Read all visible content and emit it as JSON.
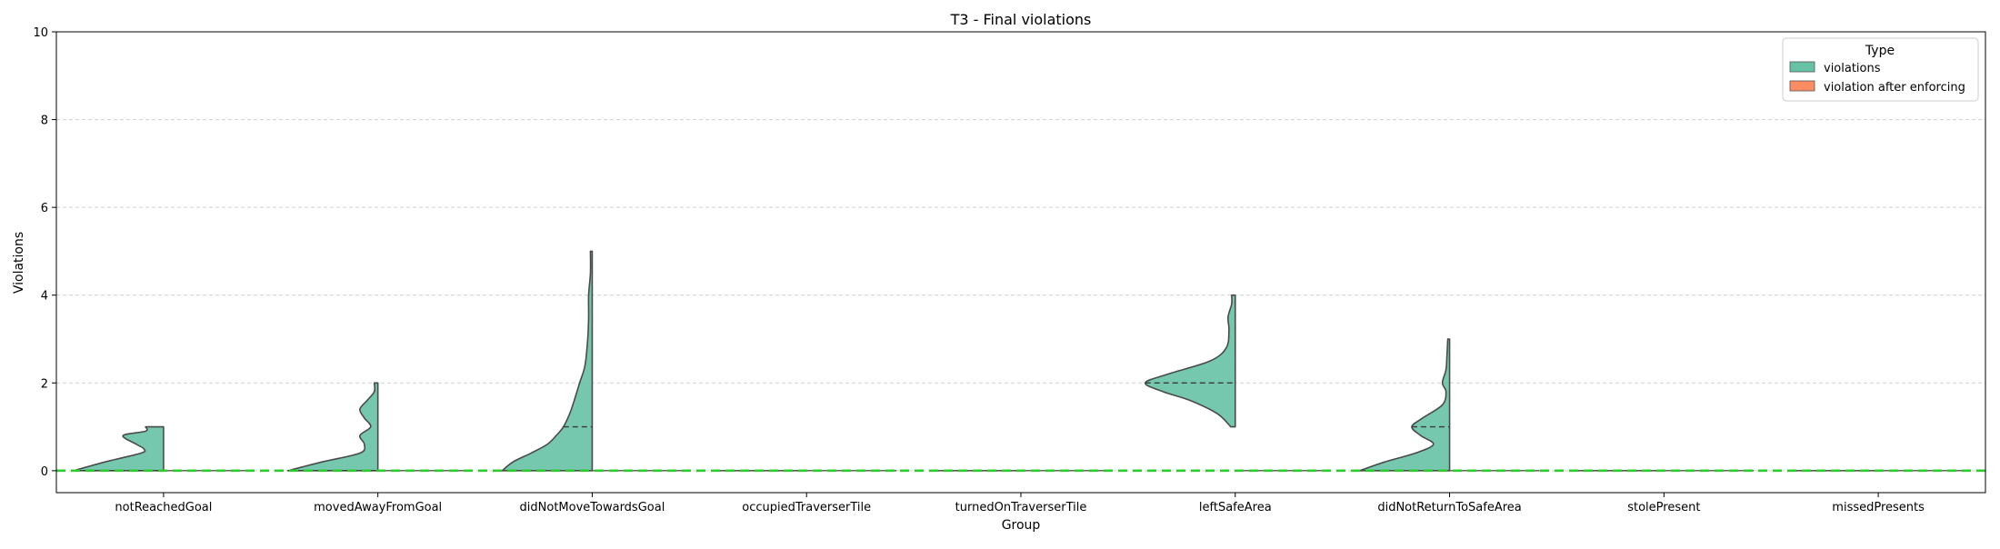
{
  "chart_data": {
    "type": "violin",
    "title": "T3 - Final violations",
    "xlabel": "Group",
    "ylabel": "Violations",
    "ylim": [
      -0.5,
      10
    ],
    "yticks": [
      0,
      2,
      4,
      6,
      8,
      10
    ],
    "grid": "y-dashed",
    "legend_position": "top-right",
    "legend": {
      "title": "Type",
      "entries": [
        {
          "label": "violations",
          "color": "#66c2a5"
        },
        {
          "label": "violation after enforcing",
          "color": "#fc8d62"
        }
      ]
    },
    "reference_line": {
      "y": 0,
      "color": "#2ecc2e",
      "style": "dashed"
    },
    "categories": [
      "notReachedGoal",
      "movedAwayFromGoal",
      "didNotMoveTowardsGoal",
      "occupiedTraverserTile",
      "turnedOnTraverserTile",
      "leftSafeArea",
      "didNotReturnToSafeArea",
      "stolePresent",
      "missedPresents"
    ],
    "series": [
      {
        "name": "violations",
        "color": "#66c2a5",
        "side": "left",
        "violins": [
          {
            "ymin": 0,
            "ymax": 1,
            "median": 0,
            "density": [
              [
                0,
                1.0
              ],
              [
                0.2,
                0.65
              ],
              [
                0.4,
                0.25
              ],
              [
                0.5,
                0.22
              ],
              [
                0.6,
                0.3
              ],
              [
                0.8,
                0.45
              ],
              [
                0.9,
                0.2
              ],
              [
                1.0,
                0.2
              ]
            ]
          },
          {
            "ymin": 0,
            "ymax": 2,
            "median": 0,
            "density": [
              [
                0,
                1.0
              ],
              [
                0.2,
                0.62
              ],
              [
                0.4,
                0.2
              ],
              [
                0.6,
                0.15
              ],
              [
                0.8,
                0.2
              ],
              [
                1.0,
                0.08
              ],
              [
                1.2,
                0.15
              ],
              [
                1.4,
                0.2
              ],
              [
                1.6,
                0.12
              ],
              [
                1.8,
                0.04
              ],
              [
                2.0,
                0.04
              ]
            ]
          },
          {
            "ymin": 0,
            "ymax": 5,
            "median": 1,
            "density": [
              [
                0,
                1.0
              ],
              [
                0.2,
                0.88
              ],
              [
                0.4,
                0.68
              ],
              [
                0.6,
                0.5
              ],
              [
                0.8,
                0.4
              ],
              [
                1.0,
                0.32
              ],
              [
                1.3,
                0.25
              ],
              [
                1.6,
                0.2
              ],
              [
                2.0,
                0.14
              ],
              [
                2.4,
                0.08
              ],
              [
                3.0,
                0.05
              ],
              [
                3.5,
                0.04
              ],
              [
                4.0,
                0.04
              ],
              [
                4.5,
                0.02
              ],
              [
                5.0,
                0.02
              ]
            ]
          },
          {
            "ymin": 0,
            "ymax": 0,
            "median": 0,
            "density": []
          },
          {
            "ymin": 0,
            "ymax": 0,
            "median": 0,
            "density": []
          },
          {
            "ymin": 1,
            "ymax": 4,
            "median": 2,
            "density": [
              [
                1.0,
                0.05
              ],
              [
                1.3,
                0.2
              ],
              [
                1.6,
                0.5
              ],
              [
                1.8,
                0.8
              ],
              [
                2.0,
                1.0
              ],
              [
                2.2,
                0.75
              ],
              [
                2.5,
                0.28
              ],
              [
                2.8,
                0.1
              ],
              [
                3.2,
                0.07
              ],
              [
                3.5,
                0.08
              ],
              [
                3.8,
                0.04
              ],
              [
                4.0,
                0.04
              ]
            ]
          },
          {
            "ymin": 0,
            "ymax": 3,
            "median": 1,
            "density": [
              [
                0,
                1.0
              ],
              [
                0.2,
                0.72
              ],
              [
                0.4,
                0.38
              ],
              [
                0.6,
                0.18
              ],
              [
                0.8,
                0.32
              ],
              [
                1.0,
                0.42
              ],
              [
                1.2,
                0.3
              ],
              [
                1.5,
                0.08
              ],
              [
                1.8,
                0.04
              ],
              [
                2.0,
                0.08
              ],
              [
                2.3,
                0.04
              ],
              [
                2.6,
                0.03
              ],
              [
                3.0,
                0.02
              ]
            ]
          },
          {
            "ymin": 0,
            "ymax": 0,
            "median": 0,
            "density": []
          },
          {
            "ymin": 0,
            "ymax": 0,
            "median": 0,
            "density": []
          }
        ]
      },
      {
        "name": "violation after enforcing",
        "color": "#fc8d62",
        "side": "right",
        "values_all_zero": true
      }
    ]
  }
}
